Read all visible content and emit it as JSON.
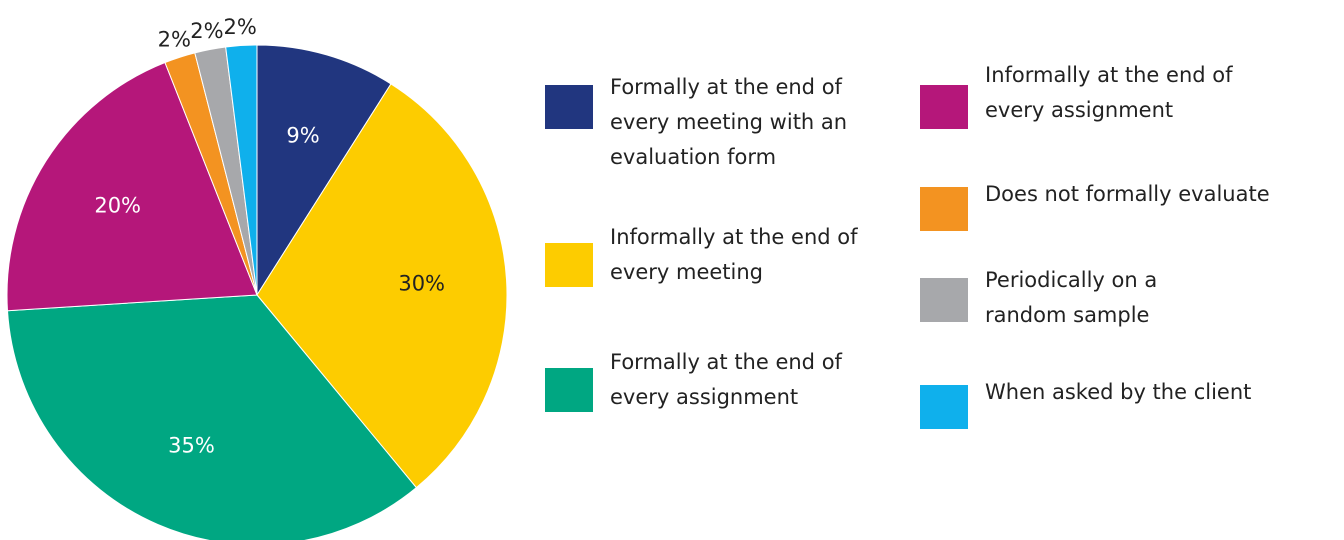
{
  "chart_data": {
    "type": "pie",
    "categories": [
      "Formally at the end of every meeting with an evaluation form",
      "Informally at the end of every meeting",
      "Formally at the end of every assignment",
      "Informally at the end of every assignment",
      "Does not formally evaluate",
      "Periodically on a random sample",
      "When asked by the client"
    ],
    "values": [
      9,
      30,
      35,
      20,
      2,
      2,
      2
    ],
    "value_labels": [
      "9%",
      "30%",
      "35%",
      "20%",
      "2%",
      "2%",
      "2%"
    ],
    "colors": [
      "#21367f",
      "#fdcc00",
      "#00a782",
      "#b5177a",
      "#f39321",
      "#a7a8ab",
      "#0fb0ec"
    ]
  }
}
